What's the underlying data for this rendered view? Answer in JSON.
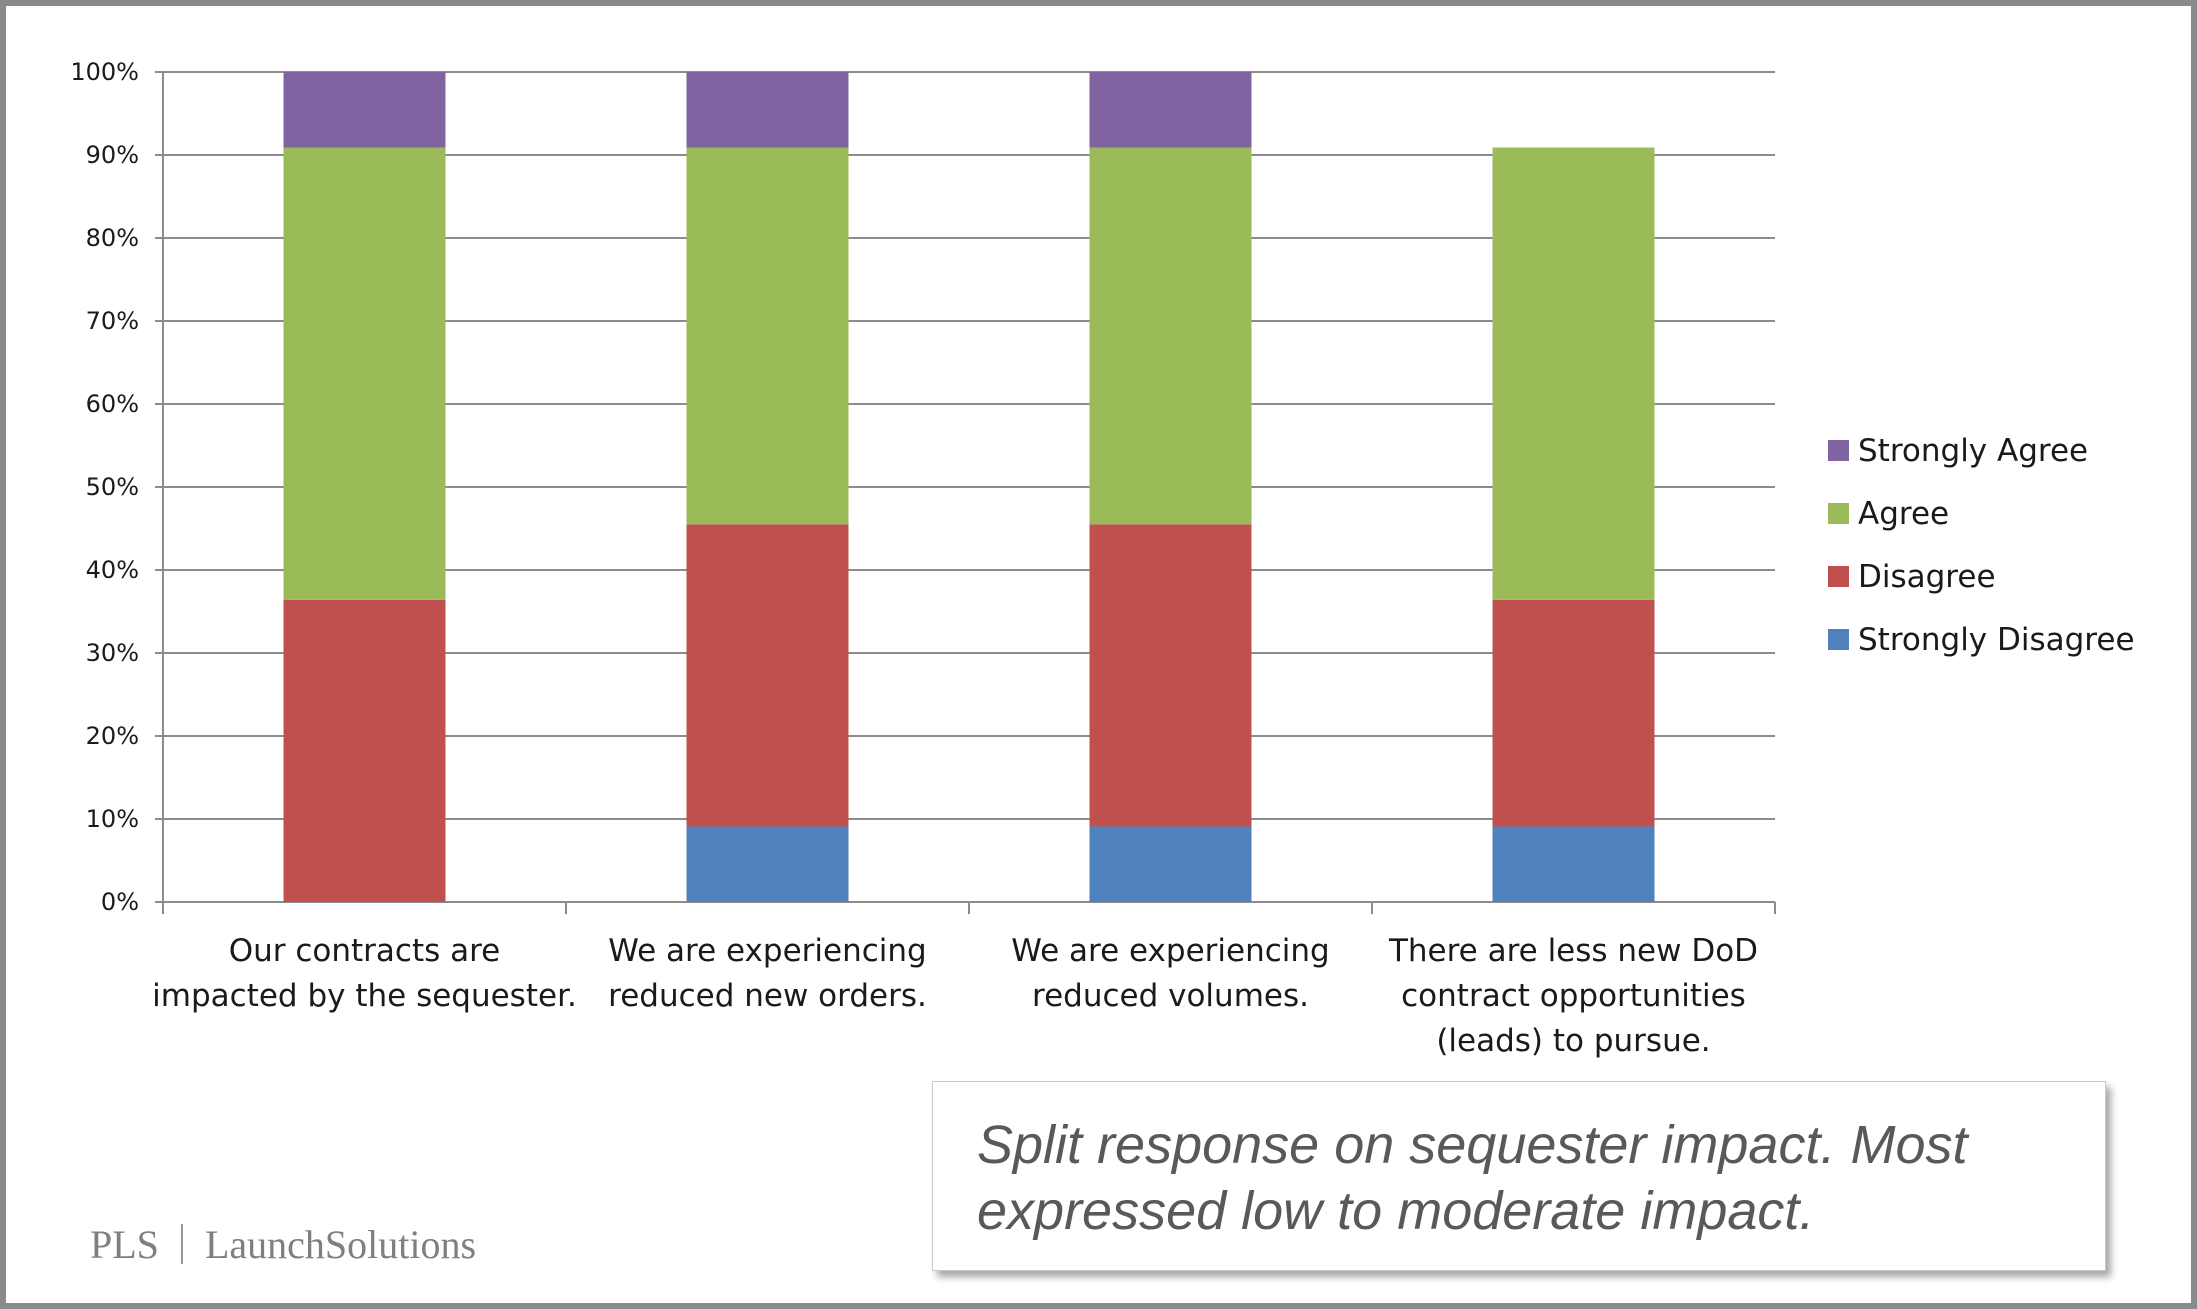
{
  "chart_data": {
    "type": "bar",
    "stacked": true,
    "categories": [
      [
        "Our contracts are",
        "impacted by the sequester."
      ],
      [
        "We are experiencing",
        "reduced new orders."
      ],
      [
        "We are experiencing",
        "reduced volumes."
      ],
      [
        "There are less new DoD",
        "contract opportunities",
        "(leads) to pursue."
      ]
    ],
    "series": [
      {
        "name": "Strongly Disagree",
        "color": "#4f81bd",
        "values": [
          0,
          9.1,
          9.1,
          9.1
        ]
      },
      {
        "name": "Disagree",
        "color": "#c0504d",
        "values": [
          36.4,
          36.4,
          36.4,
          27.3
        ]
      },
      {
        "name": "Agree",
        "color": "#9bbb59",
        "values": [
          54.5,
          45.4,
          45.4,
          54.5
        ]
      },
      {
        "name": "Strongly Agree",
        "color": "#8064a2",
        "values": [
          9.1,
          9.1,
          9.1,
          0
        ]
      }
    ],
    "legend_order": [
      "Strongly Agree",
      "Agree",
      "Disagree",
      "Strongly Disagree"
    ],
    "ylim": [
      0,
      100
    ],
    "yticks": [
      "0%",
      "10%",
      "20%",
      "30%",
      "40%",
      "50%",
      "60%",
      "70%",
      "80%",
      "90%",
      "100%"
    ],
    "grid": true,
    "legend_position": "right"
  },
  "callout": {
    "line1": "Split response on sequester impact. Most",
    "line2": "expressed low to moderate impact."
  },
  "logo": {
    "left": "PLS",
    "right": "LaunchSolutions"
  }
}
